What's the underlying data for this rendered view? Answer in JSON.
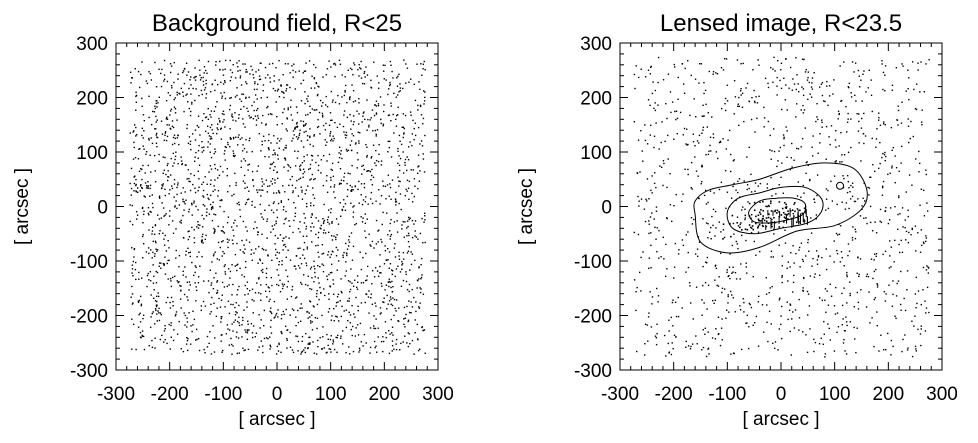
{
  "chart_data": [
    {
      "type": "scatter",
      "title": "Background field, R<25",
      "xlabel": "[ arcsec ]",
      "ylabel": "[ arcsec ]",
      "xlim": [
        -300,
        300
      ],
      "ylim": [
        -300,
        300
      ],
      "xticks": [
        "-300",
        "-200",
        "-100",
        "0",
        "100",
        "200",
        "300"
      ],
      "yticks": [
        "-300",
        "-200",
        "-100",
        "0",
        "100",
        "200",
        "300"
      ],
      "field_extent": {
        "x": [
          -275,
          275
        ],
        "y": [
          -270,
          270
        ]
      },
      "points_approx": 2600,
      "contours": []
    },
    {
      "type": "scatter",
      "title": "Lensed image, R<23.5",
      "xlabel": "[ arcsec ]",
      "ylabel": "[ arcsec ]",
      "xlim": [
        -300,
        300
      ],
      "ylim": [
        -300,
        300
      ],
      "xticks": [
        "-300",
        "-200",
        "-100",
        "0",
        "100",
        "200",
        "300"
      ],
      "yticks": [
        "-300",
        "-200",
        "-100",
        "0",
        "100",
        "200",
        "300"
      ],
      "field_extent": {
        "x": [
          -275,
          275
        ],
        "y": [
          -275,
          275
        ]
      },
      "points_approx": 1200,
      "contours": [
        {
          "level": "outer",
          "points": [
            [
              -160,
              -15
            ],
            [
              -150,
              -65
            ],
            [
              -100,
              -85
            ],
            [
              -40,
              -75
            ],
            [
              30,
              -45
            ],
            [
              100,
              -35
            ],
            [
              150,
              -5
            ],
            [
              160,
              30
            ],
            [
              135,
              70
            ],
            [
              80,
              80
            ],
            [
              20,
              70
            ],
            [
              -40,
              50
            ],
            [
              -90,
              40
            ],
            [
              -135,
              30
            ],
            [
              -160,
              10
            ]
          ]
        },
        {
          "level": "middle",
          "points": [
            [
              -100,
              -10
            ],
            [
              -90,
              -40
            ],
            [
              -50,
              -50
            ],
            [
              0,
              -40
            ],
            [
              50,
              -30
            ],
            [
              75,
              -10
            ],
            [
              75,
              15
            ],
            [
              45,
              35
            ],
            [
              0,
              35
            ],
            [
              -40,
              25
            ],
            [
              -80,
              15
            ]
          ]
        },
        {
          "level": "inner",
          "points": [
            [
              -60,
              -10
            ],
            [
              -50,
              -28
            ],
            [
              -20,
              -30
            ],
            [
              10,
              -25
            ],
            [
              40,
              -15
            ],
            [
              45,
              5
            ],
            [
              25,
              15
            ],
            [
              -10,
              15
            ],
            [
              -40,
              10
            ]
          ]
        }
      ],
      "markers": [
        {
          "x": 110,
          "y": 38,
          "shape": "circle"
        }
      ]
    }
  ]
}
